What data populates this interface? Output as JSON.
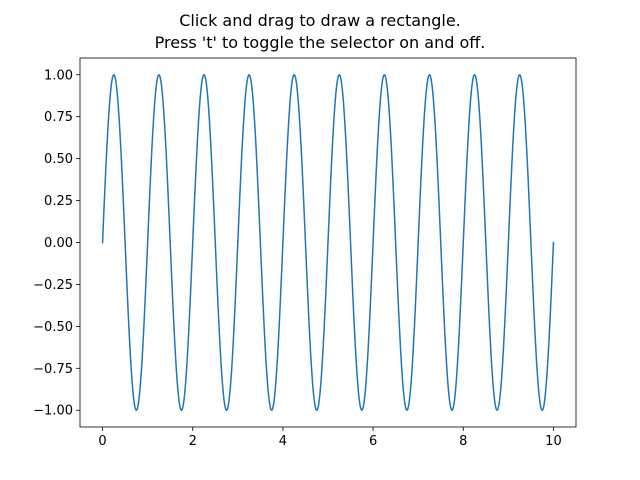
{
  "window": {
    "title_lines": [
      "Click and drag to draw a rectangle.",
      "Press 't' to toggle the selector on and off."
    ]
  },
  "chart_data": {
    "type": "line",
    "title": "Click and drag to draw a rectangle.\nPress 't' to toggle the selector on and off.",
    "xlabel": "",
    "ylabel": "",
    "xlim": [
      -0.5,
      10.5
    ],
    "ylim": [
      -1.1,
      1.1
    ],
    "x_ticks": [
      0,
      2,
      4,
      6,
      8,
      10
    ],
    "x_tick_labels": [
      "0",
      "2",
      "4",
      "6",
      "8",
      "10"
    ],
    "y_ticks": [
      1.0,
      0.75,
      0.5,
      0.25,
      0.0,
      -0.25,
      -0.5,
      -0.75,
      -1.0
    ],
    "y_tick_labels": [
      "1.00",
      "0.75",
      "0.50",
      "0.25",
      "0.00",
      "−0.25",
      "−0.50",
      "−0.75",
      "−1.00"
    ],
    "grid": false,
    "legend": "none",
    "series": [
      {
        "function": "y = sin(2πx)",
        "x_range": [
          0,
          10
        ],
        "samples": 1000,
        "color": "#1f77b4"
      }
    ]
  }
}
